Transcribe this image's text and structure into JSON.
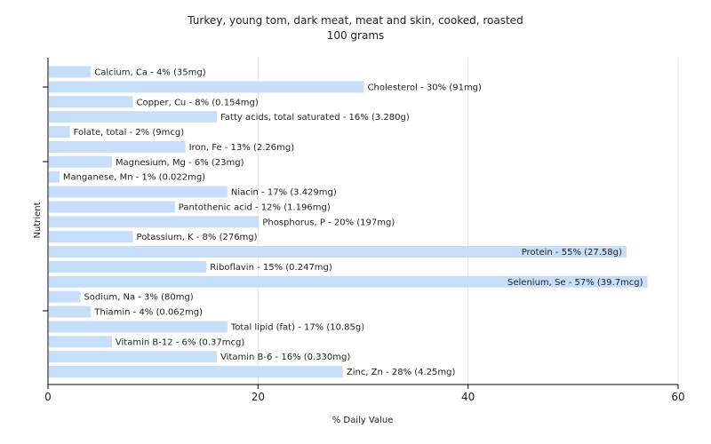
{
  "chart_data": {
    "type": "bar",
    "orientation": "horizontal",
    "title": "Turkey, young tom, dark meat, meat and skin, cooked, roasted",
    "subtitle": "100 grams",
    "xlabel": "% Daily Value",
    "ylabel": "Nutrient",
    "xlim": [
      0,
      60
    ],
    "xticks": [
      "0",
      "20",
      "40",
      "60"
    ],
    "grid": true,
    "bar_color": "#c6defa",
    "categories": [
      "Calcium, Ca",
      "Cholesterol",
      "Copper, Cu",
      "Fatty acids, total saturated",
      "Folate, total",
      "Iron, Fe",
      "Magnesium, Mg",
      "Manganese, Mn",
      "Niacin",
      "Pantothenic acid",
      "Phosphorus, P",
      "Potassium, K",
      "Protein",
      "Riboflavin",
      "Selenium, Se",
      "Sodium, Na",
      "Thiamin",
      "Total lipid (fat)",
      "Vitamin B-12",
      "Vitamin B-6",
      "Zinc, Zn"
    ],
    "values": [
      4,
      30,
      8,
      16,
      2,
      13,
      6,
      1,
      17,
      12,
      20,
      8,
      55,
      15,
      57,
      3,
      4,
      17,
      6,
      16,
      28
    ],
    "labels": [
      "Calcium, Ca - 4% (35mg)",
      "Cholesterol - 30% (91mg)",
      "Copper, Cu - 8% (0.154mg)",
      "Fatty acids, total saturated - 16% (3.280g)",
      "Folate, total - 2% (9mcg)",
      "Iron, Fe - 13% (2.26mg)",
      "Magnesium, Mg - 6% (23mg)",
      "Manganese, Mn - 1% (0.022mg)",
      "Niacin - 17% (3.429mg)",
      "Pantothenic acid - 12% (1.196mg)",
      "Phosphorus, P - 20% (197mg)",
      "Potassium, K - 8% (276mg)",
      "Protein - 55% (27.58g)",
      "Riboflavin - 15% (0.247mg)",
      "Selenium, Se - 57% (39.7mcg)",
      "Sodium, Na - 3% (80mg)",
      "Thiamin - 4% (0.062mg)",
      "Total lipid (fat) - 17% (10.85g)",
      "Vitamin B-12 - 6% (0.37mcg)",
      "Vitamin B-6 - 16% (0.330mg)",
      "Zinc, Zn - 28% (4.25mg)"
    ]
  }
}
